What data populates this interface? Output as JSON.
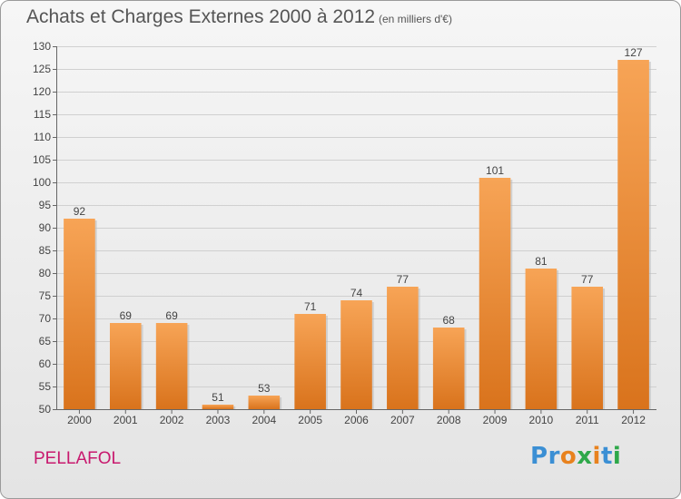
{
  "header": {
    "title": "Achats et Charges Externes 2000 à 2012",
    "unit": "(en milliers d'€)"
  },
  "footer": {
    "commune": "PELLAFOL",
    "logo_letters": [
      "P",
      "r",
      "o",
      "x",
      "i",
      "t",
      "i"
    ],
    "logo_colors": [
      "#3b8fd4",
      "#3b8fd4",
      "#e8821e",
      "#2ea84a",
      "#e8821e",
      "#3b8fd4",
      "#2ea84a"
    ]
  },
  "chart_data": {
    "type": "bar",
    "title": "Achats et Charges Externes 2000 à 2012",
    "subtitle": "(en milliers d'€)",
    "xlabel": "",
    "ylabel": "",
    "categories": [
      "2000",
      "2001",
      "2002",
      "2003",
      "2004",
      "2005",
      "2006",
      "2007",
      "2008",
      "2009",
      "2010",
      "2011",
      "2012"
    ],
    "values": [
      92,
      69,
      69,
      51,
      53,
      71,
      74,
      77,
      68,
      101,
      81,
      77,
      127
    ],
    "data_labels": [
      "92",
      "69",
      "69",
      "51",
      "53",
      "71",
      "74",
      "77",
      "68",
      "101",
      "81",
      "77",
      "127"
    ],
    "ylim": [
      50,
      130
    ],
    "yticks": [
      50,
      55,
      60,
      65,
      70,
      75,
      80,
      85,
      90,
      95,
      100,
      105,
      110,
      115,
      120,
      125,
      130
    ],
    "grid": true,
    "legend": "none",
    "bar_color_top": "#f7a456",
    "bar_color_bottom": "#d9731c"
  }
}
